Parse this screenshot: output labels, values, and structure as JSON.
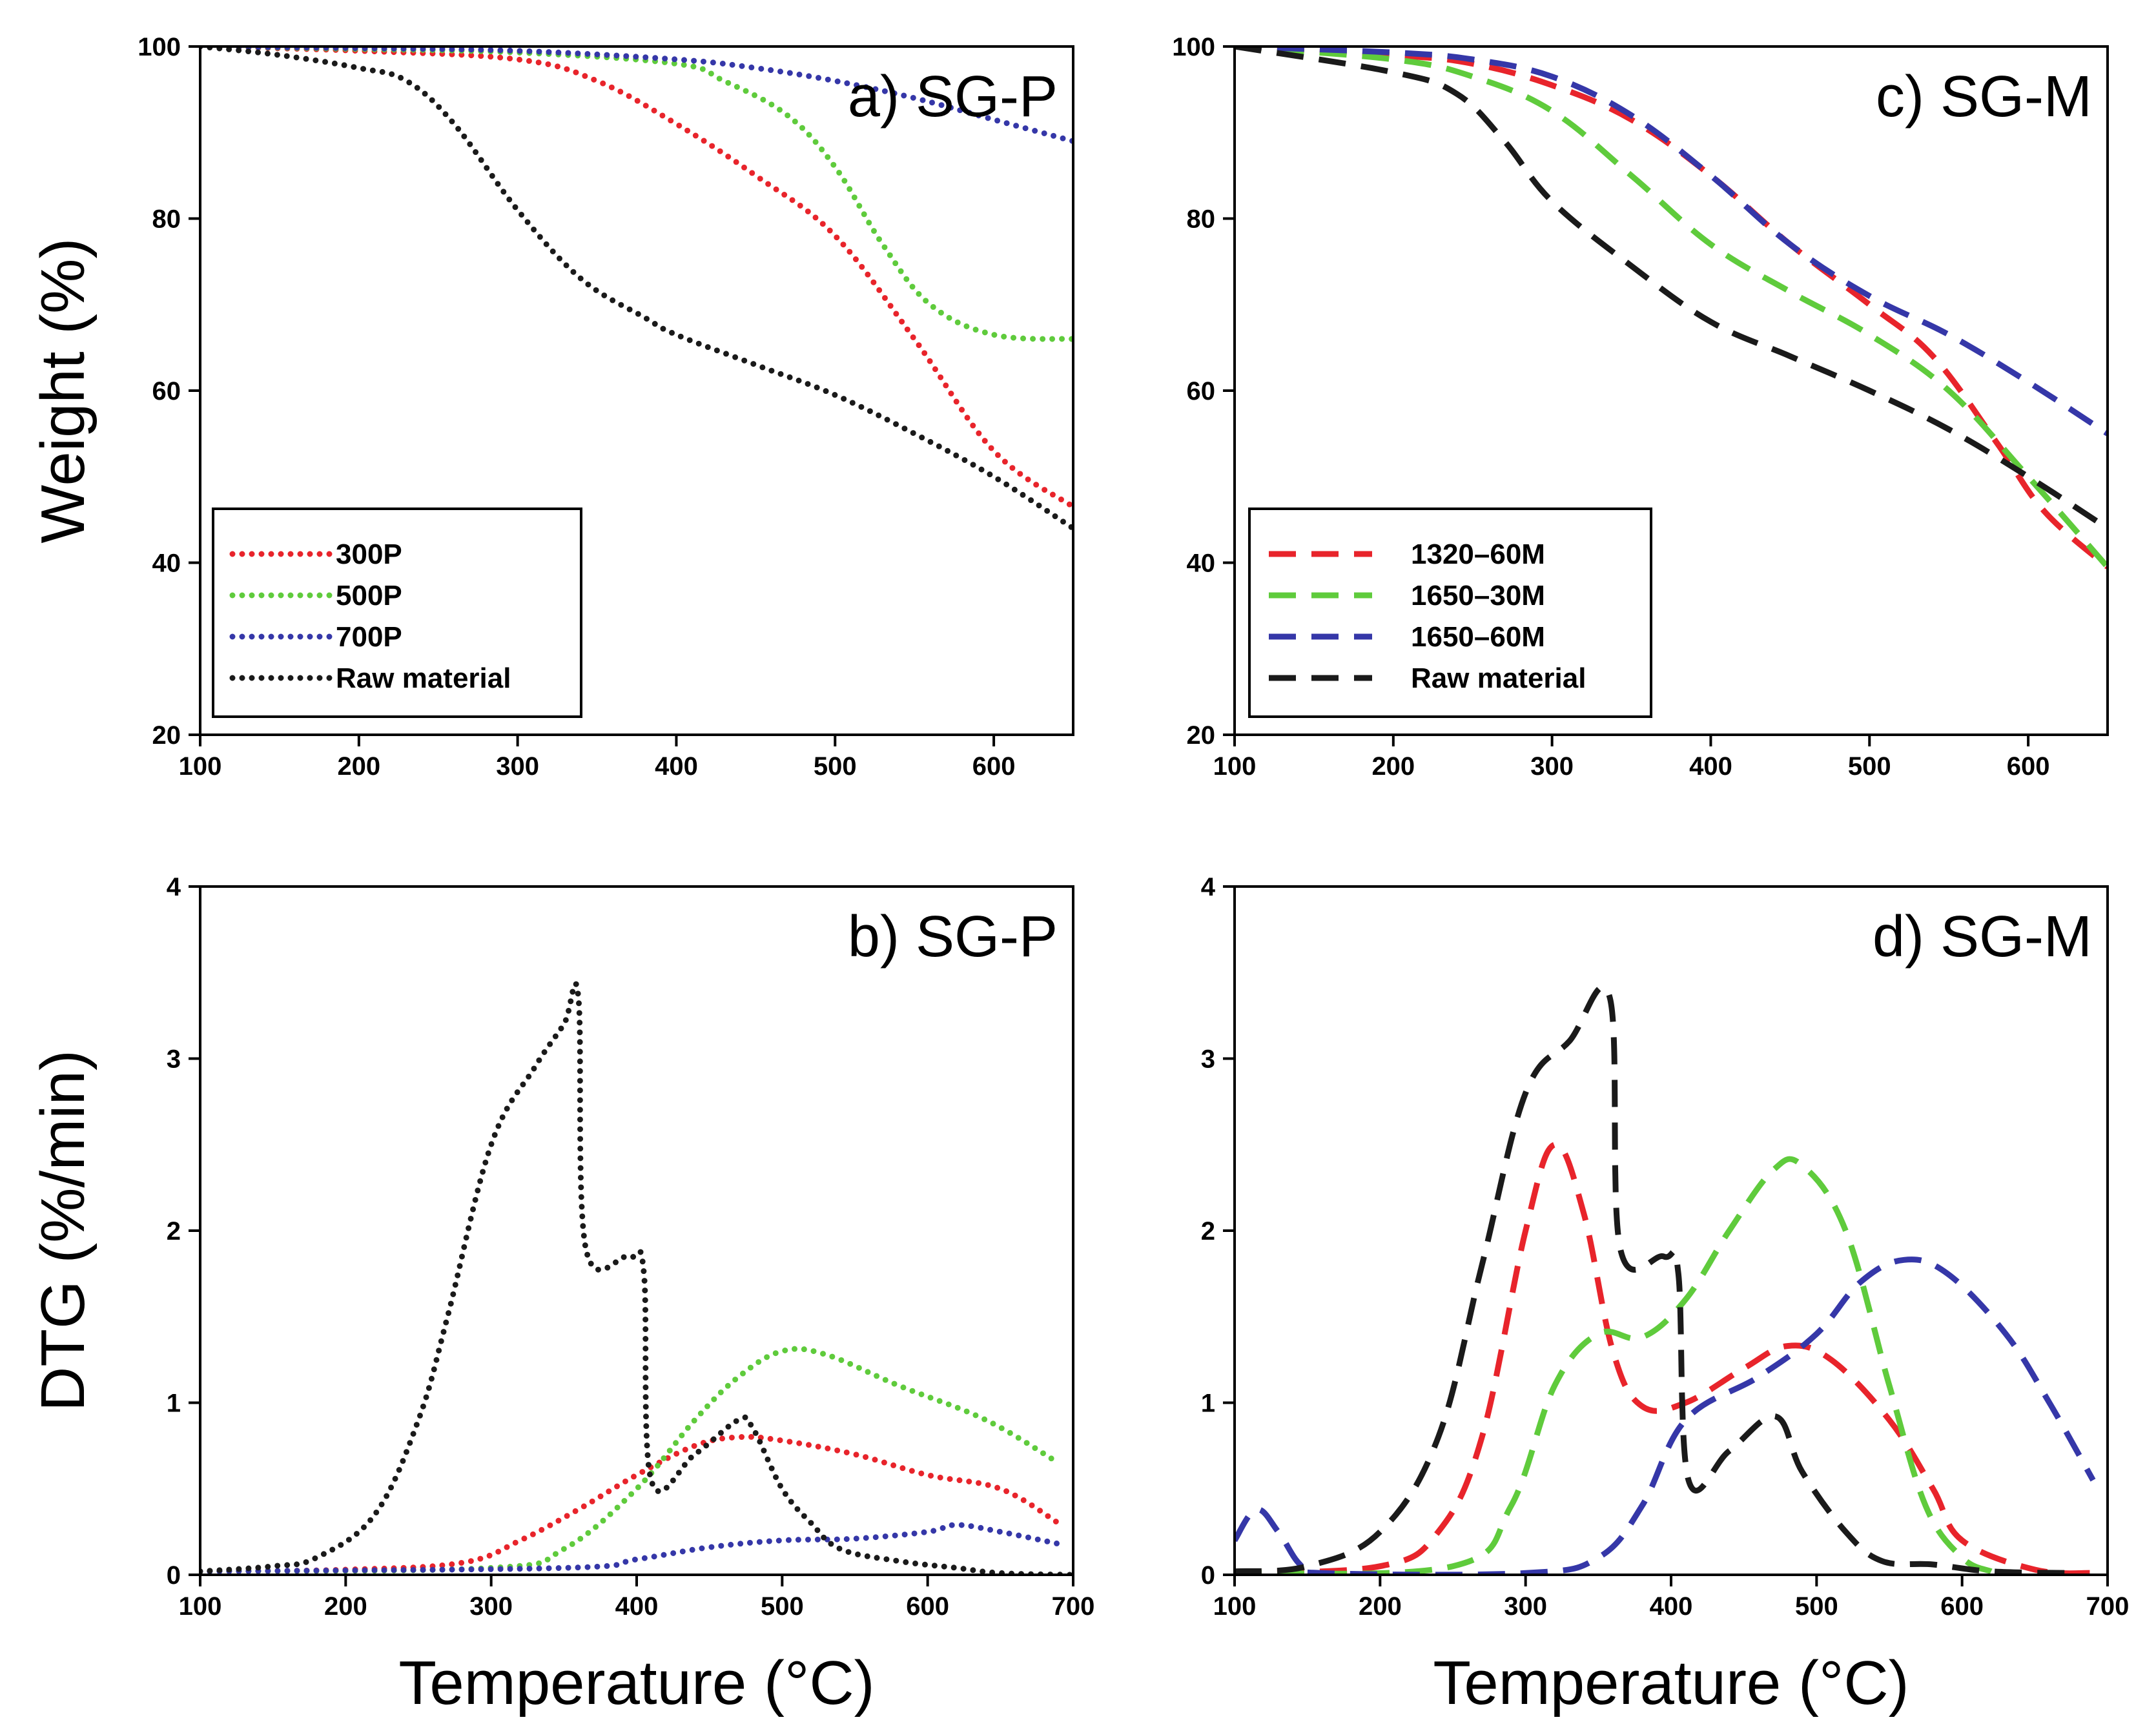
{
  "colors": {
    "red": "#e8242b",
    "green": "#5fcb3c",
    "blue": "#3537a8",
    "black": "#1a1a1a"
  },
  "chart_data": [
    {
      "id": "a",
      "type": "line",
      "title": "a) SG-P",
      "xlabel": "",
      "ylabel": "Weight (%)",
      "xlim": [
        100,
        650
      ],
      "ylim": [
        20,
        100
      ],
      "xticks": [
        100,
        200,
        300,
        400,
        500,
        600
      ],
      "yticks": [
        20,
        40,
        60,
        80,
        100
      ],
      "line_style": "dotted",
      "legend_position": "bottom-left",
      "series": [
        {
          "name": "300P",
          "color": "red",
          "points": [
            [
              100,
              100
            ],
            [
              200,
              99.5
            ],
            [
              300,
              98.5
            ],
            [
              350,
              96
            ],
            [
              400,
              91
            ],
            [
              450,
              85
            ],
            [
              500,
              78
            ],
            [
              550,
              66
            ],
            [
              600,
              53
            ],
            [
              650,
              46.5
            ]
          ]
        },
        {
          "name": "500P",
          "color": "green",
          "points": [
            [
              100,
              100
            ],
            [
              200,
              99.7
            ],
            [
              300,
              99.3
            ],
            [
              400,
              98
            ],
            [
              430,
              96
            ],
            [
              470,
              92
            ],
            [
              500,
              86
            ],
            [
              530,
              77
            ],
            [
              560,
              70
            ],
            [
              600,
              66.5
            ],
            [
              650,
              66
            ]
          ]
        },
        {
          "name": "700P",
          "color": "blue",
          "points": [
            [
              100,
              100
            ],
            [
              200,
              99.8
            ],
            [
              300,
              99.5
            ],
            [
              400,
              98.5
            ],
            [
              450,
              97.5
            ],
            [
              500,
              96
            ],
            [
              550,
              94
            ],
            [
              600,
              91.5
            ],
            [
              650,
              89
            ]
          ]
        },
        {
          "name": "Raw material",
          "color": "black",
          "points": [
            [
              100,
              100
            ],
            [
              150,
              99
            ],
            [
              200,
              97.5
            ],
            [
              230,
              96
            ],
            [
              260,
              91
            ],
            [
              300,
              81
            ],
            [
              340,
              73
            ],
            [
              380,
              68.5
            ],
            [
              400,
              66.5
            ],
            [
              450,
              63
            ],
            [
              500,
              59.5
            ],
            [
              550,
              55
            ],
            [
              600,
              50
            ],
            [
              650,
              44
            ]
          ]
        }
      ]
    },
    {
      "id": "c",
      "type": "line",
      "title": "c) SG-M",
      "xlabel": "",
      "ylabel": "",
      "xlim": [
        100,
        650
      ],
      "ylim": [
        20,
        100
      ],
      "xticks": [
        100,
        200,
        300,
        400,
        500,
        600
      ],
      "yticks": [
        20,
        40,
        60,
        80,
        100
      ],
      "line_style": "dashed",
      "legend_position": "bottom-left",
      "series": [
        {
          "name": "1320–60M",
          "color": "red",
          "points": [
            [
              100,
              100
            ],
            [
              200,
              99
            ],
            [
              250,
              98
            ],
            [
              300,
              95.5
            ],
            [
              350,
              91.5
            ],
            [
              400,
              85
            ],
            [
              450,
              77
            ],
            [
              500,
              70
            ],
            [
              540,
              64
            ],
            [
              580,
              54
            ],
            [
              610,
              46
            ],
            [
              650,
              39.5
            ]
          ]
        },
        {
          "name": "1650–30M",
          "color": "green",
          "points": [
            [
              100,
              100
            ],
            [
              200,
              98.5
            ],
            [
              250,
              96.5
            ],
            [
              300,
              92.5
            ],
            [
              350,
              85
            ],
            [
              400,
              77
            ],
            [
              450,
              71.5
            ],
            [
              500,
              66.5
            ],
            [
              550,
              60
            ],
            [
              600,
              50
            ],
            [
              650,
              39.5
            ]
          ]
        },
        {
          "name": "1650–60M",
          "color": "blue",
          "points": [
            [
              100,
              100
            ],
            [
              200,
              99.3
            ],
            [
              250,
              98.5
            ],
            [
              300,
              96.5
            ],
            [
              350,
              92
            ],
            [
              400,
              85
            ],
            [
              450,
              77
            ],
            [
              500,
              71
            ],
            [
              550,
              66.5
            ],
            [
              600,
              61
            ],
            [
              650,
              55
            ]
          ]
        },
        {
          "name": "Raw material",
          "color": "black",
          "points": [
            [
              100,
              100
            ],
            [
              200,
              97
            ],
            [
              240,
              94.5
            ],
            [
              270,
              89
            ],
            [
              300,
              82
            ],
            [
              350,
              74.5
            ],
            [
              400,
              68
            ],
            [
              450,
              64
            ],
            [
              500,
              60
            ],
            [
              550,
              55.5
            ],
            [
              600,
              50
            ],
            [
              650,
              44
            ]
          ]
        }
      ]
    },
    {
      "id": "b",
      "type": "line",
      "title": "b) SG-P",
      "xlabel": "Temperature (°C)",
      "ylabel": "DTG (%/min)",
      "xlim": [
        100,
        700
      ],
      "ylim": [
        0,
        4
      ],
      "xticks": [
        100,
        200,
        300,
        400,
        500,
        600,
        700
      ],
      "yticks": [
        0,
        1,
        2,
        3,
        4
      ],
      "line_style": "dotted",
      "series": [
        {
          "name": "300P",
          "color": "red",
          "points": [
            [
              100,
              0.02
            ],
            [
              200,
              0.03
            ],
            [
              280,
              0.07
            ],
            [
              320,
              0.2
            ],
            [
              360,
              0.38
            ],
            [
              400,
              0.58
            ],
            [
              440,
              0.75
            ],
            [
              470,
              0.8
            ],
            [
              500,
              0.78
            ],
            [
              550,
              0.7
            ],
            [
              600,
              0.58
            ],
            [
              650,
              0.5
            ],
            [
              690,
              0.3
            ]
          ]
        },
        {
          "name": "500P",
          "color": "green",
          "points": [
            [
              100,
              0.02
            ],
            [
              300,
              0.04
            ],
            [
              350,
              0.15
            ],
            [
              400,
              0.5
            ],
            [
              440,
              0.9
            ],
            [
              470,
              1.15
            ],
            [
              500,
              1.3
            ],
            [
              530,
              1.28
            ],
            [
              580,
              1.1
            ],
            [
              640,
              0.9
            ],
            [
              690,
              0.65
            ]
          ]
        },
        {
          "name": "700P",
          "color": "blue",
          "points": [
            [
              100,
              0.02
            ],
            [
              350,
              0.04
            ],
            [
              400,
              0.09
            ],
            [
              450,
              0.16
            ],
            [
              500,
              0.2
            ],
            [
              550,
              0.21
            ],
            [
              600,
              0.25
            ],
            [
              620,
              0.29
            ],
            [
              650,
              0.25
            ],
            [
              690,
              0.18
            ]
          ]
        },
        {
          "name": "Raw material",
          "color": "black",
          "points": [
            [
              100,
              0.02
            ],
            [
              150,
              0.05
            ],
            [
              180,
              0.1
            ],
            [
              220,
              0.35
            ],
            [
              250,
              0.9
            ],
            [
              270,
              1.5
            ],
            [
              300,
              2.5
            ],
            [
              330,
              2.95
            ],
            [
              350,
              3.2
            ],
            [
              360,
              3.35
            ],
            [
              365,
              1.9
            ],
            [
              395,
              1.85
            ],
            [
              405,
              1.75
            ],
            [
              410,
              0.55
            ],
            [
              440,
              0.7
            ],
            [
              470,
              0.9
            ],
            [
              480,
              0.85
            ],
            [
              500,
              0.5
            ],
            [
              520,
              0.3
            ],
            [
              540,
              0.15
            ],
            [
              580,
              0.08
            ],
            [
              620,
              0.04
            ],
            [
              650,
              0.01
            ],
            [
              700,
              0
            ]
          ]
        }
      ]
    },
    {
      "id": "d",
      "type": "line",
      "title": "d) SG-M",
      "xlabel": "Temperature (°C)",
      "ylabel": "",
      "xlim": [
        100,
        700
      ],
      "ylim": [
        0,
        4
      ],
      "xticks": [
        100,
        200,
        300,
        400,
        500,
        600,
        700
      ],
      "yticks": [
        0,
        1,
        2,
        3,
        4
      ],
      "line_style": "dashed",
      "series": [
        {
          "name": "1320–60M",
          "color": "red",
          "points": [
            [
              100,
              0.01
            ],
            [
              200,
              0.05
            ],
            [
              240,
              0.25
            ],
            [
              270,
              0.8
            ],
            [
              300,
              2.0
            ],
            [
              320,
              2.5
            ],
            [
              340,
              2.1
            ],
            [
              360,
              1.3
            ],
            [
              380,
              0.98
            ],
            [
              410,
              1.0
            ],
            [
              450,
              1.2
            ],
            [
              480,
              1.33
            ],
            [
              510,
              1.25
            ],
            [
              550,
              0.9
            ],
            [
              580,
              0.5
            ],
            [
              600,
              0.2
            ],
            [
              650,
              0.03
            ],
            [
              690,
              0.01
            ]
          ]
        },
        {
          "name": "1650–30M",
          "color": "green",
          "points": [
            [
              100,
              0.01
            ],
            [
              250,
              0.05
            ],
            [
              290,
              0.4
            ],
            [
              320,
              1.1
            ],
            [
              350,
              1.4
            ],
            [
              380,
              1.38
            ],
            [
              410,
              1.6
            ],
            [
              440,
              2.0
            ],
            [
              470,
              2.35
            ],
            [
              490,
              2.38
            ],
            [
              520,
              2.0
            ],
            [
              550,
              1.1
            ],
            [
              575,
              0.4
            ],
            [
              600,
              0.1
            ],
            [
              620,
              0.02
            ]
          ]
        },
        {
          "name": "1650–60M",
          "color": "blue",
          "points": [
            [
              100,
              0.2
            ],
            [
              115,
              0.38
            ],
            [
              130,
              0.25
            ],
            [
              145,
              0.06
            ],
            [
              160,
              0.01
            ],
            [
              300,
              0.01
            ],
            [
              350,
              0.1
            ],
            [
              380,
              0.4
            ],
            [
              410,
              0.9
            ],
            [
              460,
              1.15
            ],
            [
              500,
              1.4
            ],
            [
              530,
              1.7
            ],
            [
              560,
              1.83
            ],
            [
              590,
              1.75
            ],
            [
              630,
              1.4
            ],
            [
              660,
              1.0
            ],
            [
              690,
              0.55
            ]
          ]
        },
        {
          "name": "Raw material",
          "color": "black",
          "points": [
            [
              100,
              0.02
            ],
            [
              150,
              0.05
            ],
            [
              200,
              0.25
            ],
            [
              240,
              0.8
            ],
            [
              270,
              1.8
            ],
            [
              300,
              2.8
            ],
            [
              330,
              3.1
            ],
            [
              358,
              3.35
            ],
            [
              365,
              1.9
            ],
            [
              395,
              1.85
            ],
            [
              405,
              1.75
            ],
            [
              412,
              0.55
            ],
            [
              440,
              0.72
            ],
            [
              472,
              0.92
            ],
            [
              490,
              0.6
            ],
            [
              520,
              0.25
            ],
            [
              545,
              0.08
            ],
            [
              580,
              0.06
            ],
            [
              620,
              0.02
            ],
            [
              680,
              0.01
            ]
          ]
        }
      ]
    }
  ]
}
